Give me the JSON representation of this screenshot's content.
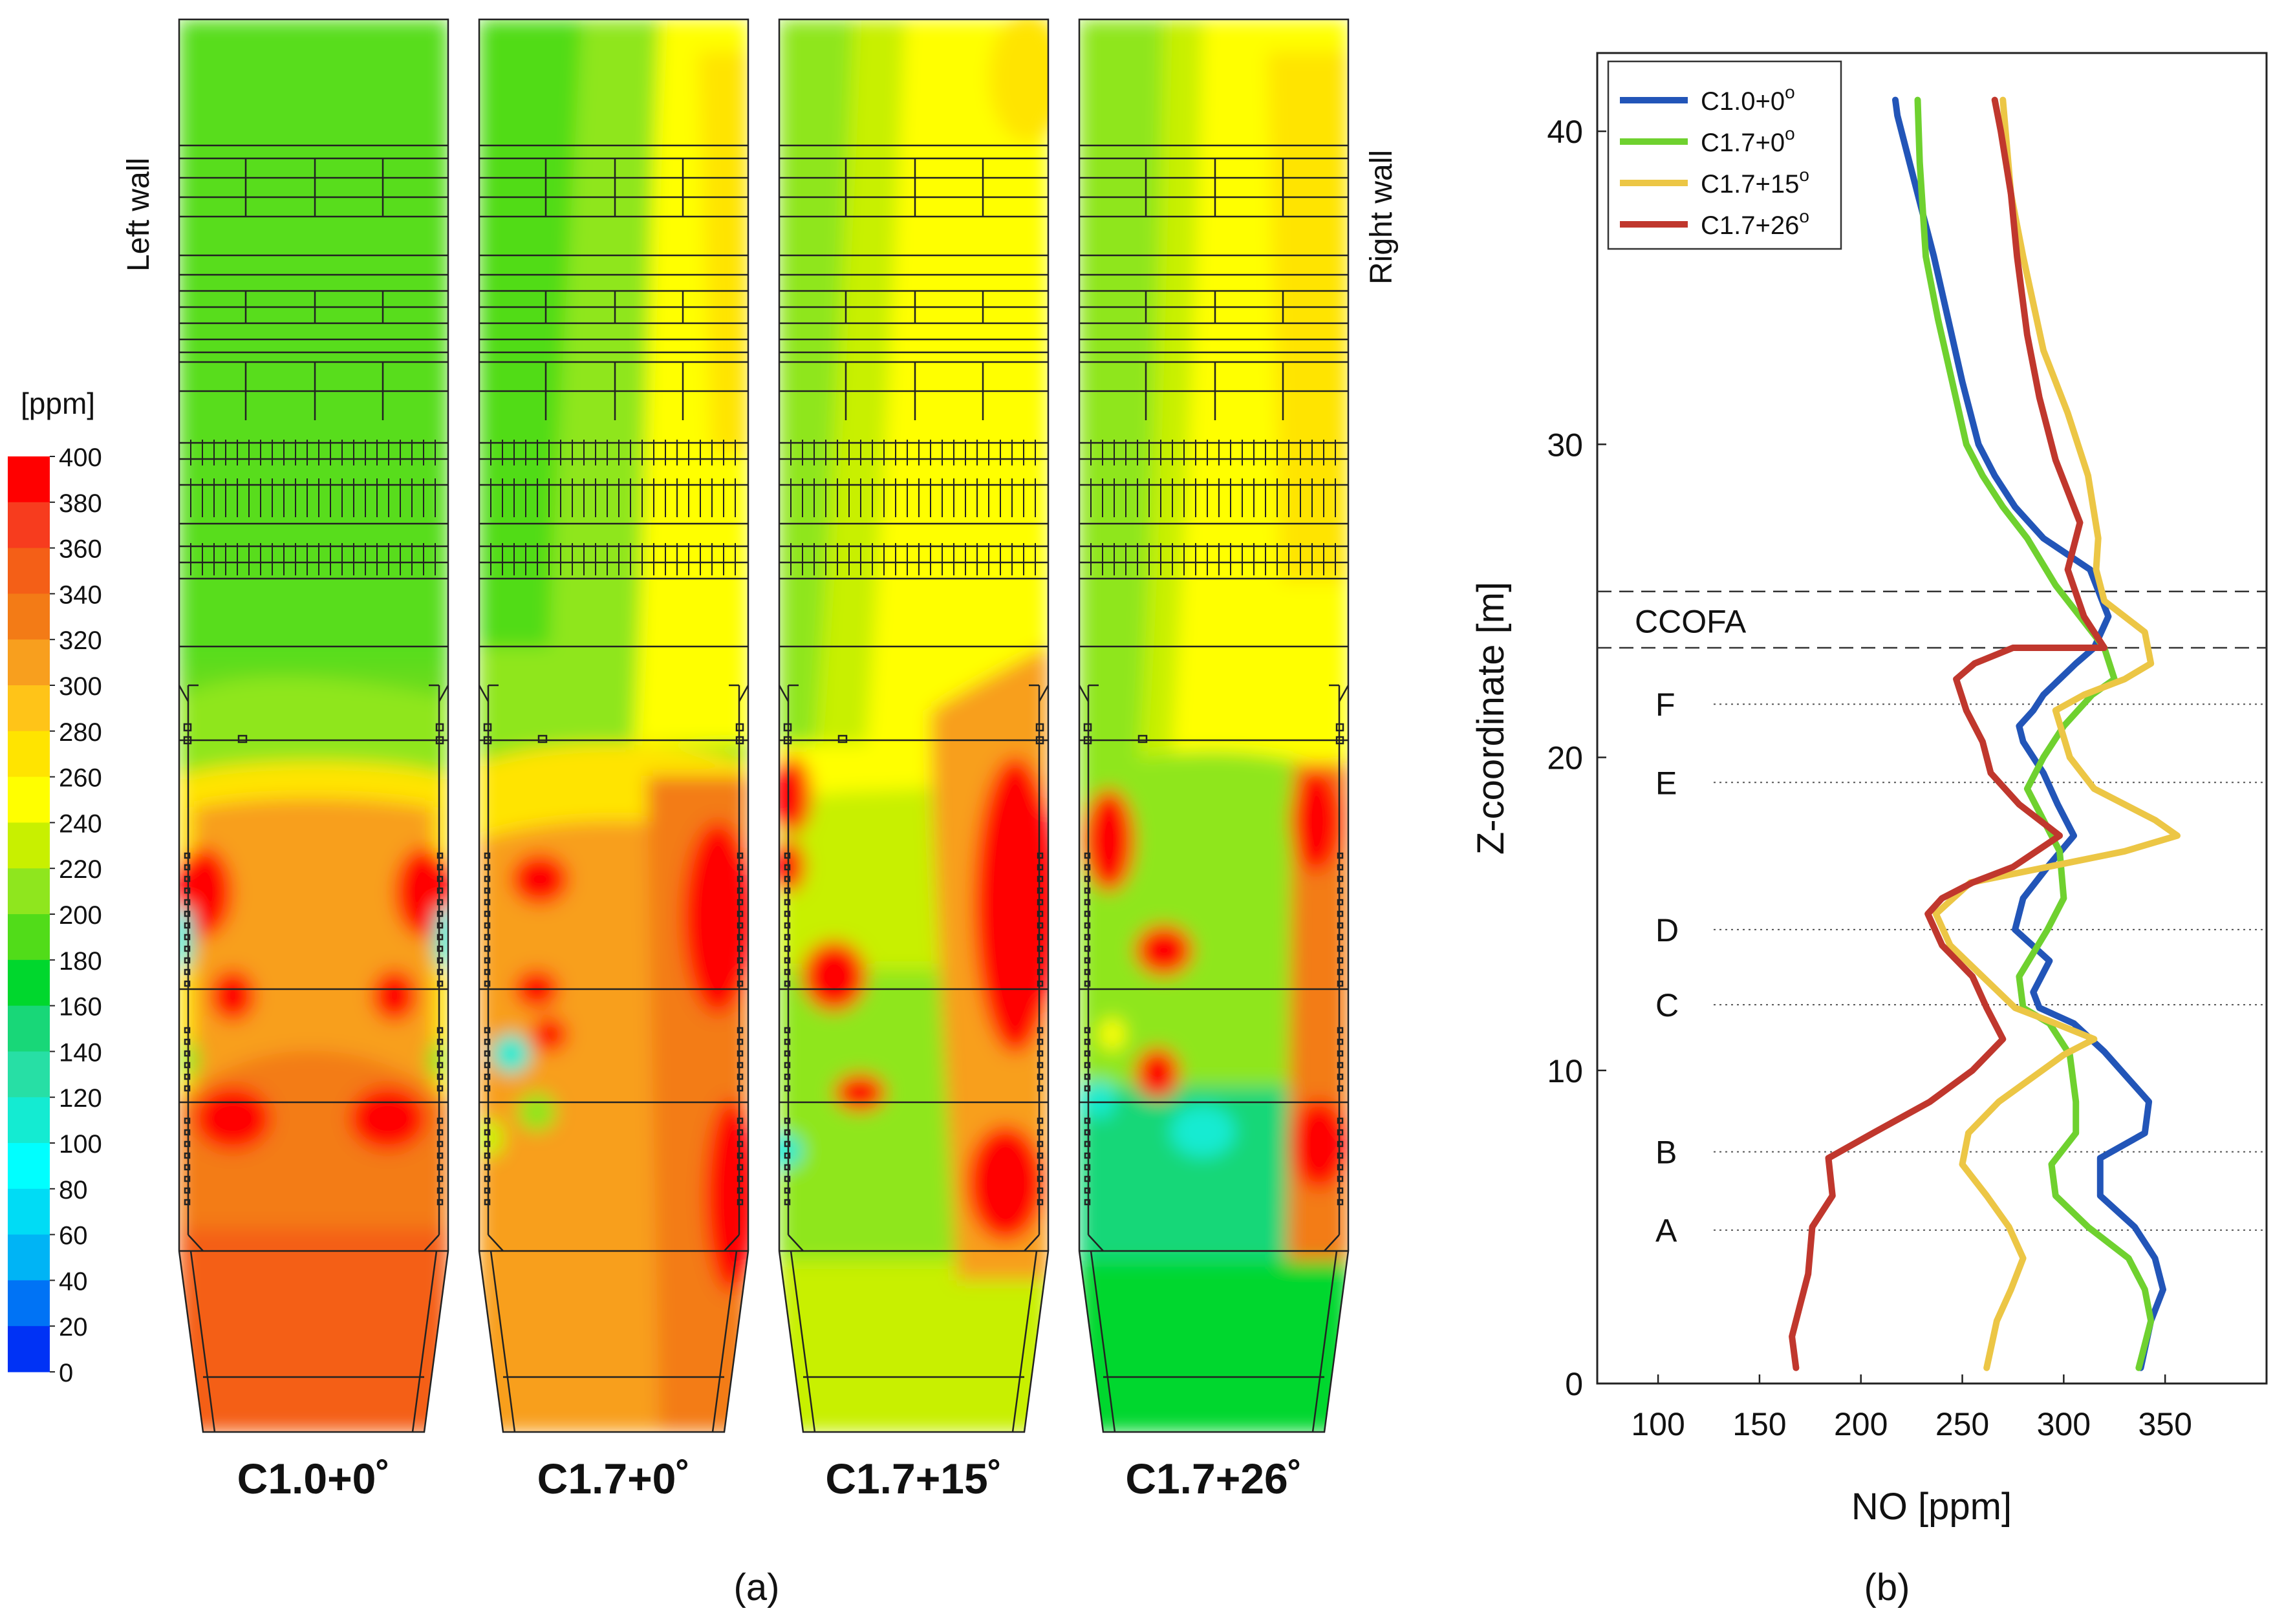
{
  "panel_a": {
    "caption": "(a)",
    "colorbar": {
      "unit": "[ppm]",
      "ticks": [
        "400",
        "380",
        "360",
        "340",
        "320",
        "300",
        "280",
        "260",
        "240",
        "220",
        "200",
        "180",
        "160",
        "140",
        "120",
        "100",
        "80",
        "60",
        "40",
        "20",
        "0"
      ],
      "colors": [
        "#ff0000",
        "#f73c1e",
        "#f45f17",
        "#f37b16",
        "#f89f1e",
        "#ffc418",
        "#ffe400",
        "#ffff00",
        "#c8f000",
        "#8fe61e",
        "#51dc19",
        "#00d72d",
        "#18d778",
        "#27dfa5",
        "#14ebd2",
        "#00ffff",
        "#00dcf5",
        "#00b4f5",
        "#0073f5",
        "#0032f5"
      ]
    },
    "wall_labels": {
      "left": "Left wall",
      "right": "Right wall"
    },
    "cases": [
      {
        "label": "C1.0+0˚"
      },
      {
        "label": "C1.7+0˚"
      },
      {
        "label": "C1.7+15˚"
      },
      {
        "label": "C1.7+26˚"
      }
    ]
  },
  "chart_data": {
    "type": "line",
    "caption": "(b)",
    "xlabel": "NO [ppm]",
    "ylabel": "Z-coordinate [m]",
    "xlim": [
      70,
      400
    ],
    "ylim": [
      0,
      42.5
    ],
    "xticks": [
      100,
      150,
      200,
      250,
      300,
      350
    ],
    "yticks": [
      0,
      10,
      20,
      30,
      40
    ],
    "legend_position": "top-left",
    "series": [
      {
        "name": "C1.0+0",
        "superscript": "o",
        "color": "#2255b8",
        "x": [
          338,
          343,
          349,
          345,
          335,
          318,
          318,
          340,
          342,
          320,
          305,
          288,
          285,
          293,
          276,
          280,
          292,
          305,
          297,
          290,
          280,
          278,
          285,
          290,
          298,
          306,
          315,
          322,
          313,
          290,
          276,
          266,
          258,
          250,
          243,
          236,
          228,
          222,
          218,
          217
        ],
        "y": [
          0.5,
          2,
          3,
          4,
          5,
          6,
          7.2,
          8,
          9,
          10.6,
          11.5,
          12,
          12.5,
          13.5,
          14.5,
          15.5,
          16.5,
          17.5,
          18.5,
          19.5,
          20.5,
          21,
          21.5,
          22,
          22.5,
          23,
          23.5,
          24.5,
          26,
          27,
          28,
          29,
          30,
          32,
          34,
          36,
          38,
          39.5,
          40.5,
          41
        ]
      },
      {
        "name": "C1.7+0",
        "superscript": "o",
        "color": "#6fd12f",
        "x": [
          337,
          343,
          340,
          332,
          312,
          296,
          294,
          306,
          306,
          303,
          293,
          280,
          278,
          292,
          300,
          298,
          290,
          282,
          290,
          300,
          314,
          325,
          320,
          308,
          296,
          282,
          270,
          260,
          252,
          245,
          238,
          232,
          229,
          228
        ],
        "y": [
          0.5,
          2,
          3,
          4,
          5,
          6,
          7,
          8,
          9,
          10.5,
          11.5,
          12,
          13,
          14.5,
          15.5,
          17,
          18,
          19,
          20,
          21,
          22,
          22.5,
          23.5,
          24.5,
          25.5,
          27,
          28,
          29,
          30,
          32,
          34,
          36,
          39,
          41
        ]
      },
      {
        "name": "C1.7+15",
        "superscript": "o",
        "color": "#ecc645",
        "x": [
          262,
          267,
          274,
          280,
          273,
          262,
          250,
          253,
          268,
          300,
          315,
          296,
          276,
          260,
          244,
          237,
          254,
          292,
          330,
          356,
          345,
          315,
          303,
          296,
          310,
          330,
          343,
          340,
          320,
          316,
          317,
          312,
          302,
          290,
          280,
          274,
          270
        ],
        "y": [
          0.5,
          2,
          3,
          4,
          5,
          6,
          7,
          8,
          9,
          10.5,
          11,
          11.5,
          12,
          13,
          14,
          15,
          16,
          16.5,
          17,
          17.5,
          18,
          19,
          20,
          21.5,
          22,
          22.5,
          23,
          24,
          25,
          26,
          27,
          29,
          31,
          33,
          36,
          38,
          41
        ]
      },
      {
        "name": "C1.7+26",
        "superscript": "o",
        "color": "#c0372d",
        "x": [
          168,
          166,
          170,
          174,
          176,
          186,
          184,
          206,
          234,
          255,
          270,
          262,
          255,
          240,
          233,
          240,
          255,
          275,
          298,
          278,
          264,
          260,
          252,
          247,
          256,
          275,
          300,
          320,
          310,
          302,
          308,
          296,
          288,
          282,
          277,
          274,
          269,
          266
        ],
        "y": [
          0.5,
          1.5,
          2.5,
          3.5,
          5,
          6,
          7.2,
          8,
          9,
          10,
          11,
          12,
          13,
          14,
          15,
          15.5,
          16,
          16.5,
          17.5,
          18.5,
          19.5,
          20.5,
          21.5,
          22.5,
          23,
          23.5,
          23.5,
          23.5,
          24.5,
          26,
          27.5,
          29.5,
          31.5,
          33.5,
          36,
          38,
          40,
          41
        ]
      }
    ],
    "annotations": [
      {
        "label": "CCOFA",
        "y": 24.4,
        "style": "dashed-band",
        "band": [
          23.5,
          25.3
        ]
      },
      {
        "label": "F",
        "y": 21.7
      },
      {
        "label": "E",
        "y": 19.2
      },
      {
        "label": "D",
        "y": 14.5
      },
      {
        "label": "C",
        "y": 12.1
      },
      {
        "label": "B",
        "y": 7.4
      },
      {
        "label": "A",
        "y": 4.9
      }
    ]
  }
}
